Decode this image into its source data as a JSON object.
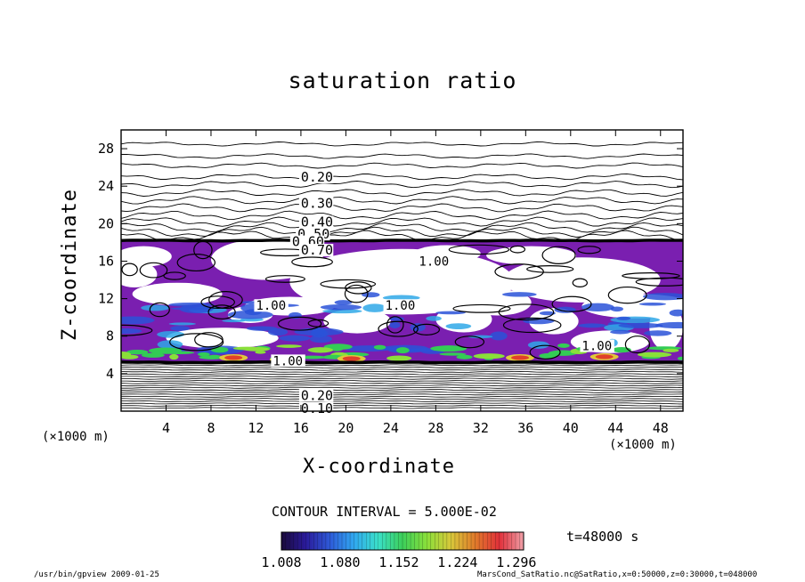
{
  "chart_data": {
    "type": "heatmap",
    "title": "saturation ratio",
    "xlabel": "X-coordinate",
    "ylabel": "Z-coordinate",
    "x_unit": "(×1000 m)",
    "y_unit": "(×1000 m)",
    "xlim": [
      0,
      50
    ],
    "ylim": [
      0,
      30
    ],
    "x_ticks": [
      4,
      8,
      12,
      16,
      20,
      24,
      28,
      32,
      36,
      40,
      44,
      48
    ],
    "y_ticks": [
      4,
      8,
      12,
      16,
      20,
      24,
      28
    ],
    "contour_labels_upper": [
      "0.20",
      "0.30",
      "0.40",
      "0.50",
      "0.60",
      "0.70"
    ],
    "contour_labels_lower": [
      "0.10",
      "0.20"
    ],
    "contour_labels_cloud": [
      "1.00"
    ],
    "contour_interval": "CONTOUR INTERVAL = 5.000E-02",
    "colorbar": {
      "ticks": [
        "1.008",
        "1.080",
        "1.152",
        "1.224",
        "1.296"
      ],
      "min": 1.008,
      "max": 1.296,
      "colors": [
        "#1a0a3a",
        "#2a1a9a",
        "#2e5ad8",
        "#30a8f0",
        "#3ae0c8",
        "#3ccf5a",
        "#8adf3a",
        "#d8c83a",
        "#e07a2a",
        "#e0303a",
        "#f0a0a8"
      ]
    },
    "cloud_layer_z": [
      5.2,
      18.2
    ]
  },
  "time_label": "t=48000 s",
  "footer": {
    "left": "/usr/bin/gpview  2009-01-25",
    "right": "MarsCond_SatRatio.nc@SatRatio,x=0:50000,z=0:30000,t=048000"
  },
  "colors": {
    "cloud_purple": "#7a1fb0",
    "cloud_blue": "#2a52d8",
    "cloud_green": "#33cc55",
    "cloud_red": "#e0402a"
  }
}
